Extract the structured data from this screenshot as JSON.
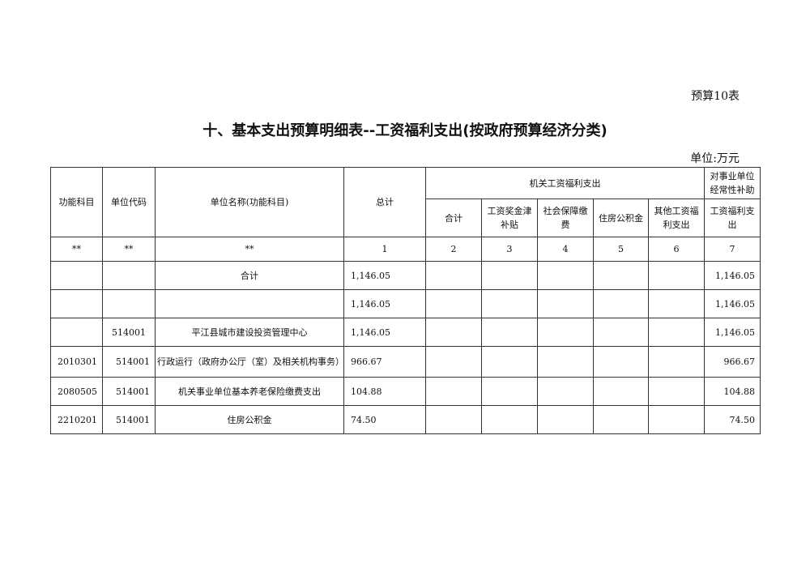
{
  "table_no": "预算10表",
  "title": "十、基本支出预算明细表--工资福利支出(按政府预算经济分类)",
  "unit": "单位:万元",
  "header": {
    "func": "功能科目",
    "code": "单位代码",
    "name": "单位名称(功能科目)",
    "total": "总计",
    "group1": "机关工资福利支出",
    "group2": "对事业单位经常性补助",
    "sub": [
      "合计",
      "工资奖金津补贴",
      "社会保障缴费",
      "住房公积金",
      "其他工资福利支出"
    ],
    "sub2": "工资福利支出",
    "index": [
      "**",
      "**",
      "**",
      "1",
      "2",
      "3",
      "4",
      "5",
      "6",
      "7"
    ]
  },
  "rows": [
    [
      "",
      "",
      "合计",
      "1,146.05",
      "",
      "",
      "",
      "",
      "",
      "1,146.05"
    ],
    [
      "",
      "",
      "",
      "1,146.05",
      "",
      "",
      "",
      "",
      "",
      "1,146.05"
    ],
    [
      "",
      "514001",
      "平江县城市建设投资管理中心",
      "1,146.05",
      "",
      "",
      "",
      "",
      "",
      "1,146.05"
    ],
    [
      "2010301",
      "514001",
      "行政运行（政府办公厅（室）及相关机构事务）",
      "966.67",
      "",
      "",
      "",
      "",
      "",
      "966.67"
    ],
    [
      "2080505",
      "514001",
      "机关事业单位基本养老保险缴费支出",
      "104.88",
      "",
      "",
      "",
      "",
      "",
      "104.88"
    ],
    [
      "2210201",
      "514001",
      "住房公积金",
      "74.50",
      "",
      "",
      "",
      "",
      "",
      "74.50"
    ]
  ]
}
